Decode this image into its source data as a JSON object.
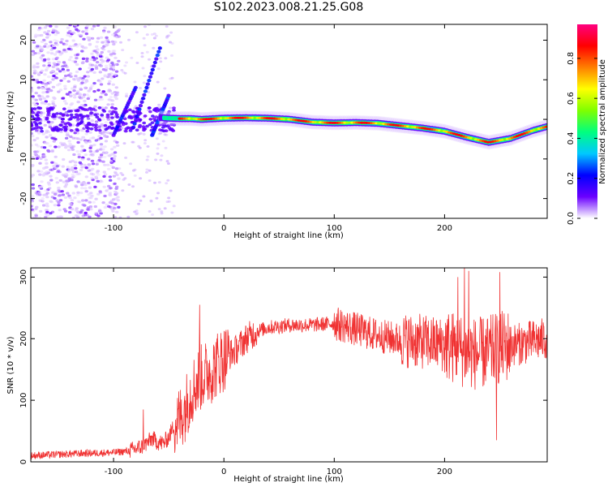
{
  "title": "S102.2023.008.21.25.G08",
  "chart_data": [
    {
      "type": "heatmap",
      "xlabel": "Height of straight line (km)",
      "ylabel": "Frequency (Hz)",
      "xlim": [
        -175,
        293
      ],
      "ylim": [
        -25,
        24
      ],
      "x_ticks": [
        -100,
        0,
        100,
        200
      ],
      "y_ticks": [
        -20,
        -10,
        0,
        10,
        20
      ],
      "colorbar": {
        "label": "Normalized spectral amplitude",
        "ticks": [
          "0.0",
          "0.2",
          "0.4",
          "0.6",
          "0.8"
        ],
        "range": [
          0,
          0.97
        ],
        "colormap": [
          "#ffffff",
          "#6a00ff",
          "#0000ff",
          "#00c8ff",
          "#00ff7f",
          "#7fff00",
          "#ffff00",
          "#ff7f00",
          "#ff0000",
          "#ff0080"
        ]
      },
      "ridge": {
        "x": [
          -60,
          -50,
          -40,
          -30,
          -20,
          0,
          20,
          40,
          60,
          80,
          100,
          120,
          140,
          160,
          180,
          200,
          220,
          240,
          260,
          280,
          293
        ],
        "y": [
          0.5,
          0.3,
          0.2,
          0.2,
          0.0,
          0.3,
          0.4,
          0.3,
          0.0,
          -0.7,
          -0.9,
          -0.8,
          -1.0,
          -1.6,
          -2.2,
          -3.0,
          -4.5,
          -5.8,
          -4.8,
          -2.8,
          -1.8
        ]
      }
    },
    {
      "type": "line",
      "xlabel": "Height of straight line (km)",
      "ylabel": "SNR (10 * v/v)",
      "xlim": [
        -175,
        293
      ],
      "ylim": [
        0,
        315
      ],
      "x_ticks": [
        -100,
        0,
        100,
        200
      ],
      "y_ticks": [
        0,
        100,
        200,
        300
      ],
      "color": "#f03232",
      "series": [
        {
          "x": [
            -175,
            -150,
            -125,
            -100,
            -85,
            -75,
            -70,
            -65,
            -60,
            -55,
            -50,
            -45,
            -40,
            -35,
            -30,
            -25,
            -20,
            -15,
            -10,
            -5,
            0,
            10,
            20,
            30,
            40,
            50,
            60,
            80,
            100,
            120,
            140,
            160,
            180,
            200,
            210,
            220,
            230,
            240,
            250,
            260,
            270,
            280,
            293
          ],
          "y": [
            10,
            12,
            14,
            15,
            18,
            24,
            30,
            38,
            32,
            30,
            40,
            60,
            70,
            88,
            112,
            128,
            138,
            145,
            150,
            162,
            168,
            180,
            200,
            212,
            218,
            220,
            222,
            222,
            225,
            215,
            205,
            198,
            195,
            190,
            185,
            178,
            175,
            178,
            185,
            190,
            192,
            196,
            200
          ],
          "spikes": [
            {
              "x": -73,
              "y": 85
            },
            {
              "x": -22,
              "y": 255
            },
            {
              "x": 212,
              "y": 300
            },
            {
              "x": 218,
              "y": 315
            },
            {
              "x": 222,
              "y": 310
            },
            {
              "x": 247,
              "y": 35
            },
            {
              "x": 250,
              "y": 308
            }
          ]
        }
      ]
    }
  ]
}
